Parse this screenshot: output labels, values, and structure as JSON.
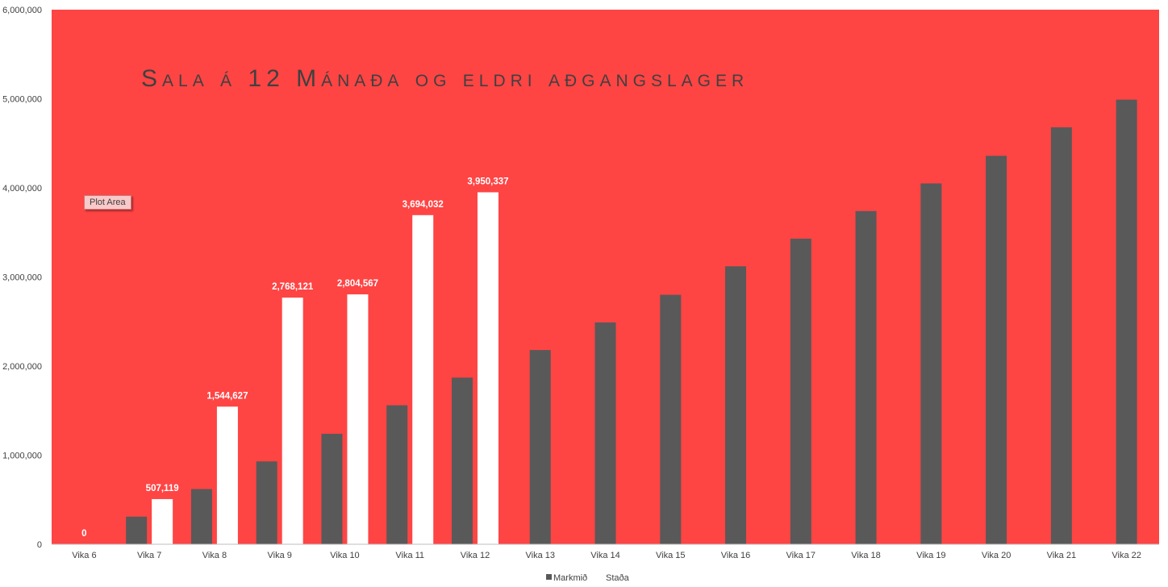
{
  "tooltip": "Plot Area",
  "chart_data": {
    "type": "bar",
    "title": "Sala á 12 Mánaða og eldri aðgangslager",
    "categories": [
      "Vika 6",
      "Vika 7",
      "Vika 8",
      "Vika 9",
      "Vika 10",
      "Vika 11",
      "Vika 12",
      "Vika 13",
      "Vika 14",
      "Vika 15",
      "Vika 16",
      "Vika 17",
      "Vika 18",
      "Vika 19",
      "Vika 20",
      "Vika 21",
      "Vika 22"
    ],
    "series": [
      {
        "name": "Markmið",
        "color": "#595959",
        "values": [
          0,
          310000,
          620000,
          930000,
          1240000,
          1560000,
          1870000,
          2180000,
          2490000,
          2800000,
          3120000,
          3430000,
          3740000,
          4050000,
          4360000,
          4680000,
          4990000
        ]
      },
      {
        "name": "Staða",
        "color": "#ffffff",
        "values": [
          0,
          507119,
          1544627,
          2768121,
          2804567,
          3694032,
          3950337,
          null,
          null,
          null,
          null,
          null,
          null,
          null,
          null,
          null,
          null
        ],
        "data_labels": [
          "0",
          "507,119",
          "1,544,627",
          "2,768,121",
          "2,804,567",
          "3,694,032",
          "3,950,337"
        ]
      }
    ],
    "yticks": [
      "0",
      "1,000,000",
      "2,000,000",
      "3,000,000",
      "4,000,000",
      "5,000,000",
      "6,000,000"
    ],
    "ylim": [
      0,
      6000000
    ],
    "plot_background": "#ff4444",
    "grid": false,
    "legend": "bottom"
  }
}
